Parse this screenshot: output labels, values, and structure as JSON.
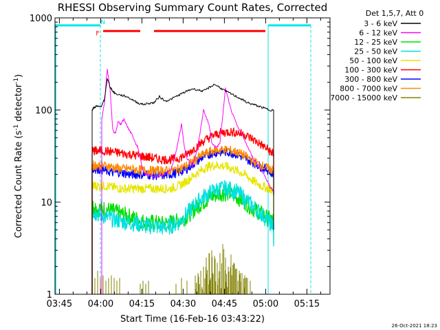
{
  "chart_data": {
    "type": "line",
    "title": "RHESSI Observing Summary Count Rates, Corrected",
    "xlabel": "Start Time (16-Feb-16 03:43:22)",
    "ylabel_main": "Corrected Count Rate (s",
    "ylabel_sup1": "-1",
    "ylabel_mid": " detector",
    "ylabel_sup2": "-1",
    "ylabel_end": ")",
    "x_units": "minutes since 03:43:22",
    "xlim": [
      0,
      100
    ],
    "ylim": [
      1,
      1000
    ],
    "y_scale": "log",
    "x_ticks": [
      {
        "label": "03:45",
        "value": 1.6
      },
      {
        "label": "04:00",
        "value": 16.6
      },
      {
        "label": "04:15",
        "value": 31.6
      },
      {
        "label": "04:30",
        "value": 46.6
      },
      {
        "label": "04:45",
        "value": 61.6
      },
      {
        "label": "05:00",
        "value": 76.6
      },
      {
        "label": "05:15",
        "value": 91.6
      }
    ],
    "y_ticks": [
      {
        "label": "1",
        "value": 1
      },
      {
        "label": "10",
        "value": 10
      },
      {
        "label": "100",
        "value": 100
      },
      {
        "label": "1000",
        "value": 1000
      }
    ],
    "legend": {
      "header": "Det 1,5,7, Att 0",
      "placement": "top-right outside plot"
    },
    "series": [
      {
        "name": "3 - 6 keV",
        "color": "#000000",
        "x": [
          13.5,
          14,
          15,
          16,
          17,
          18,
          19,
          20,
          21,
          22,
          24,
          26,
          28,
          30,
          32,
          34,
          36,
          38,
          40,
          42,
          44,
          46,
          48,
          50,
          52,
          54,
          56,
          58,
          60,
          62,
          64,
          66,
          68,
          70,
          72,
          74,
          76,
          78,
          79.5
        ],
        "y": [
          100,
          105,
          110,
          108,
          112,
          130,
          220,
          180,
          160,
          150,
          145,
          140,
          130,
          120,
          115,
          118,
          120,
          140,
          125,
          130,
          140,
          150,
          160,
          170,
          165,
          160,
          175,
          190,
          175,
          160,
          150,
          140,
          130,
          120,
          115,
          110,
          105,
          100,
          100
        ]
      },
      {
        "name": "6 - 12 keV",
        "color": "#ff00ff",
        "x": [
          17,
          18,
          19,
          20,
          21,
          22,
          23,
          24,
          25,
          26,
          27,
          28,
          29,
          30,
          31,
          32,
          33,
          34,
          36,
          38,
          40,
          42,
          44,
          45,
          46,
          47,
          48,
          50,
          52,
          54,
          56,
          57,
          58,
          59,
          60,
          62,
          64,
          66,
          68,
          70,
          72,
          74,
          76,
          78,
          79.5
        ],
        "y": [
          80,
          120,
          280,
          170,
          60,
          55,
          75,
          70,
          80,
          70,
          60,
          55,
          45,
          40,
          30,
          22,
          20,
          20,
          19,
          19,
          20,
          22,
          35,
          50,
          70,
          40,
          30,
          25,
          40,
          100,
          70,
          45,
          40,
          40,
          45,
          170,
          100,
          70,
          55,
          40,
          30,
          25,
          20,
          15,
          13
        ]
      },
      {
        "name": "12 - 25 keV",
        "color": "#00dd00",
        "x": [
          13.5,
          15,
          18,
          21,
          24,
          27,
          30,
          33,
          36,
          39,
          42,
          45,
          48,
          51,
          54,
          57,
          60,
          63,
          66,
          69,
          72,
          75,
          78,
          79.5
        ],
        "y": [
          9,
          8.5,
          8.5,
          8,
          7.5,
          7,
          6.5,
          6,
          6,
          5.8,
          6,
          6.2,
          7,
          8.5,
          10,
          11.5,
          12.5,
          12.5,
          11.5,
          10,
          8.5,
          7.5,
          6.5,
          6
        ]
      },
      {
        "name": "25 - 50 keV",
        "color": "#00e0e0",
        "x": [
          13.5,
          15,
          18,
          21,
          24,
          27,
          30,
          33,
          36,
          39,
          42,
          45,
          48,
          51,
          54,
          57,
          60,
          63,
          66,
          69,
          72,
          75,
          78,
          79.5
        ],
        "y": [
          8,
          7.5,
          7,
          6.5,
          6.2,
          6,
          5.8,
          5.5,
          5.5,
          5.3,
          5.5,
          6,
          7.5,
          9.5,
          11.5,
          13,
          14,
          14,
          13,
          11,
          9,
          7.5,
          6,
          5.5
        ]
      },
      {
        "name": "50 - 100 keV",
        "color": "#e6e600",
        "x": [
          13.5,
          15,
          18,
          21,
          24,
          27,
          30,
          33,
          36,
          39,
          42,
          45,
          48,
          51,
          54,
          57,
          60,
          63,
          66,
          69,
          72,
          75,
          78,
          79.5
        ],
        "y": [
          15,
          15,
          15,
          14.5,
          14,
          14,
          14,
          14,
          14,
          14,
          14,
          15,
          17,
          20,
          23,
          25,
          25,
          24,
          22,
          20,
          17,
          15,
          14,
          13
        ]
      },
      {
        "name": "100 - 300 keV",
        "color": "#ff0000",
        "x": [
          13.5,
          15,
          18,
          21,
          24,
          27,
          30,
          33,
          36,
          39,
          42,
          45,
          48,
          51,
          54,
          57,
          60,
          63,
          66,
          69,
          72,
          75,
          78,
          79.5
        ],
        "y": [
          36,
          36,
          36,
          35,
          34,
          33,
          32,
          31,
          30,
          29,
          29,
          30,
          33,
          39,
          46,
          52,
          56,
          58,
          57,
          54,
          48,
          42,
          36,
          33
        ]
      },
      {
        "name": "300 - 800 keV",
        "color": "#0000ff",
        "x": [
          13.5,
          15,
          18,
          21,
          24,
          27,
          30,
          33,
          36,
          39,
          42,
          45,
          48,
          51,
          54,
          57,
          60,
          63,
          66,
          69,
          72,
          75,
          78,
          79.5
        ],
        "y": [
          23,
          23,
          22,
          21,
          21,
          20,
          20,
          20,
          19.5,
          19.5,
          20,
          21,
          23,
          27,
          31,
          34,
          35,
          35,
          33,
          30,
          27,
          24,
          22,
          20
        ]
      },
      {
        "name": "800 - 7000 keV",
        "color": "#ff8800",
        "x": [
          13.5,
          15,
          18,
          21,
          24,
          27,
          30,
          33,
          36,
          39,
          42,
          45,
          48,
          51,
          54,
          57,
          60,
          63,
          66,
          69,
          72,
          75,
          78,
          79.5
        ],
        "y": [
          25,
          25,
          25,
          24,
          23,
          23,
          22.5,
          22,
          22,
          22,
          22,
          23,
          25,
          29,
          33,
          36,
          37,
          37,
          35,
          32,
          28,
          25,
          23,
          22
        ]
      },
      {
        "name": "7000 - 15000 keV",
        "color": "#808000",
        "x": [
          13.5,
          14.5,
          15.5,
          16.5,
          17.5,
          18.5,
          19.5,
          20.5,
          21.5,
          22.5,
          23.5,
          31,
          32,
          33,
          34,
          44,
          46,
          48,
          51,
          52,
          53,
          54,
          55,
          56,
          57,
          58,
          59,
          60,
          61,
          62,
          63,
          64,
          65,
          66,
          67,
          68,
          69,
          70,
          71
        ],
        "y": [
          2,
          1.5,
          1.8,
          1.5,
          1.6,
          1.4,
          1.5,
          1.6,
          1.5,
          1.4,
          1.5,
          1.3,
          1.4,
          1.3,
          1.4,
          1.3,
          1.5,
          1.4,
          1.6,
          1.7,
          1.8,
          2.0,
          2.5,
          2.8,
          3.0,
          2.6,
          2.2,
          2.8,
          3.5,
          2.5,
          2.0,
          2.7,
          2.2,
          1.9,
          1.8,
          1.7,
          1.6,
          1.5,
          1.4
        ]
      }
    ],
    "flags": [
      {
        "name": "SAA",
        "color": "#00e6e6",
        "segments": [
          [
            0,
            16.5
          ],
          [
            77.5,
            93
          ]
        ],
        "level": 830
      },
      {
        "name": "flare",
        "color": "#ff0000",
        "segments": [
          [
            17.5,
            31
          ],
          [
            36,
            76.5
          ]
        ],
        "level": 720
      },
      {
        "name": "night",
        "color": "#00e6e6",
        "boundaries": [
          16.5,
          77.5,
          93
        ]
      }
    ],
    "flag_letters": [
      {
        "text": "F",
        "color": "#ff0000",
        "x": 15.5,
        "y": 680
      },
      {
        "text": "N",
        "color": "#00e6e6",
        "x": 17.4,
        "y": 900
      }
    ],
    "data_window": [
      13.5,
      79.5
    ],
    "timestamp": "26-Oct-2021 18:23"
  }
}
